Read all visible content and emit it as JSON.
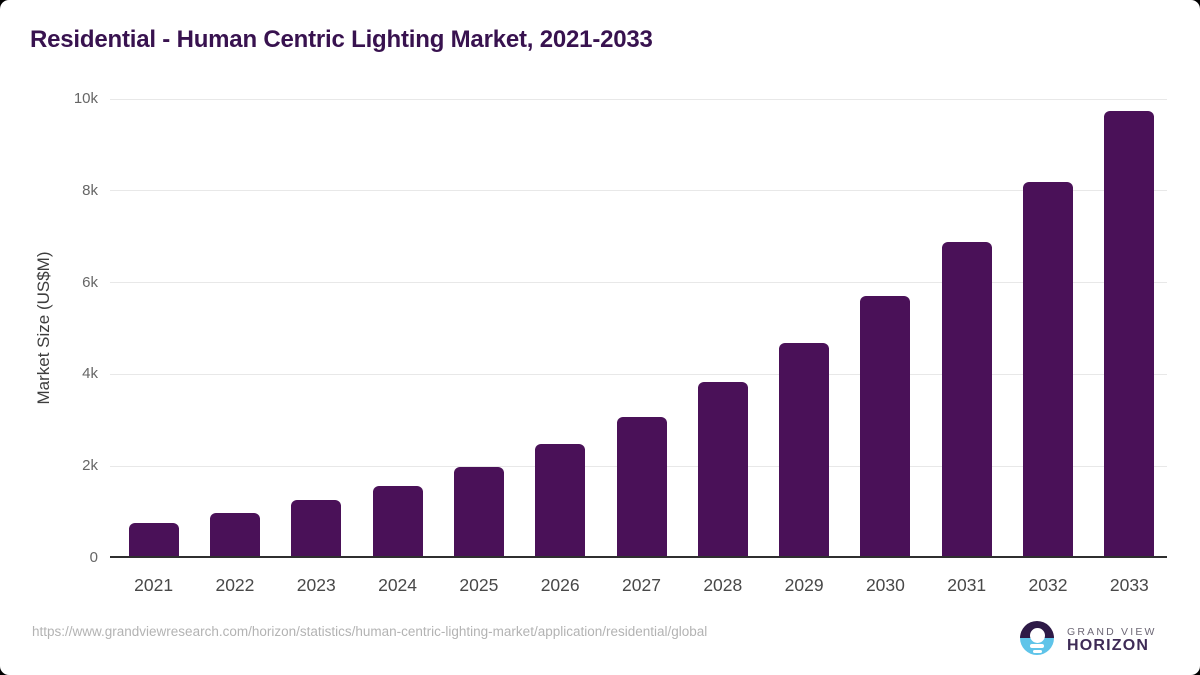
{
  "chart_data": {
    "type": "bar",
    "title": "Residential - Human Centric Lighting Market, 2021-2033",
    "categories": [
      "2021",
      "2022",
      "2023",
      "2024",
      "2025",
      "2026",
      "2027",
      "2028",
      "2029",
      "2030",
      "2031",
      "2032",
      "2033"
    ],
    "values": [
      770,
      990,
      1255,
      1560,
      1975,
      2480,
      3075,
      3830,
      4690,
      5700,
      6880,
      8190,
      9735
    ],
    "xlabel": "",
    "ylabel": "Market Size (US$M)",
    "ylim": [
      0,
      10000
    ],
    "yticks": [
      0,
      2000,
      4000,
      6000,
      8000,
      10000
    ],
    "ytick_labels": [
      "0",
      "2k",
      "4k",
      "6k",
      "8k",
      "10k"
    ],
    "grid": true,
    "legend": "none",
    "bar_color": "#4a1158"
  },
  "footer": {
    "source_url": "https://www.grandviewresearch.com/horizon/statistics/human-centric-lighting-market/application/residential/global",
    "logo": {
      "line1": "GRAND VIEW",
      "line2": "HORIZON"
    }
  },
  "colors": {
    "title": "#38124f",
    "bar": "#4a1158",
    "grid": "#e8e8e8",
    "axis_line": "#2f2f2f",
    "y_tick_text": "#666666",
    "x_tick_text": "#484848",
    "url_text": "#b3b3b3",
    "logo_dark_half": "#2e1a47",
    "logo_blue_half": "#5fc4e9",
    "logo_text_gray": "#6d6876",
    "logo_text_purple": "#3e2b56",
    "background": "#ffffff"
  }
}
